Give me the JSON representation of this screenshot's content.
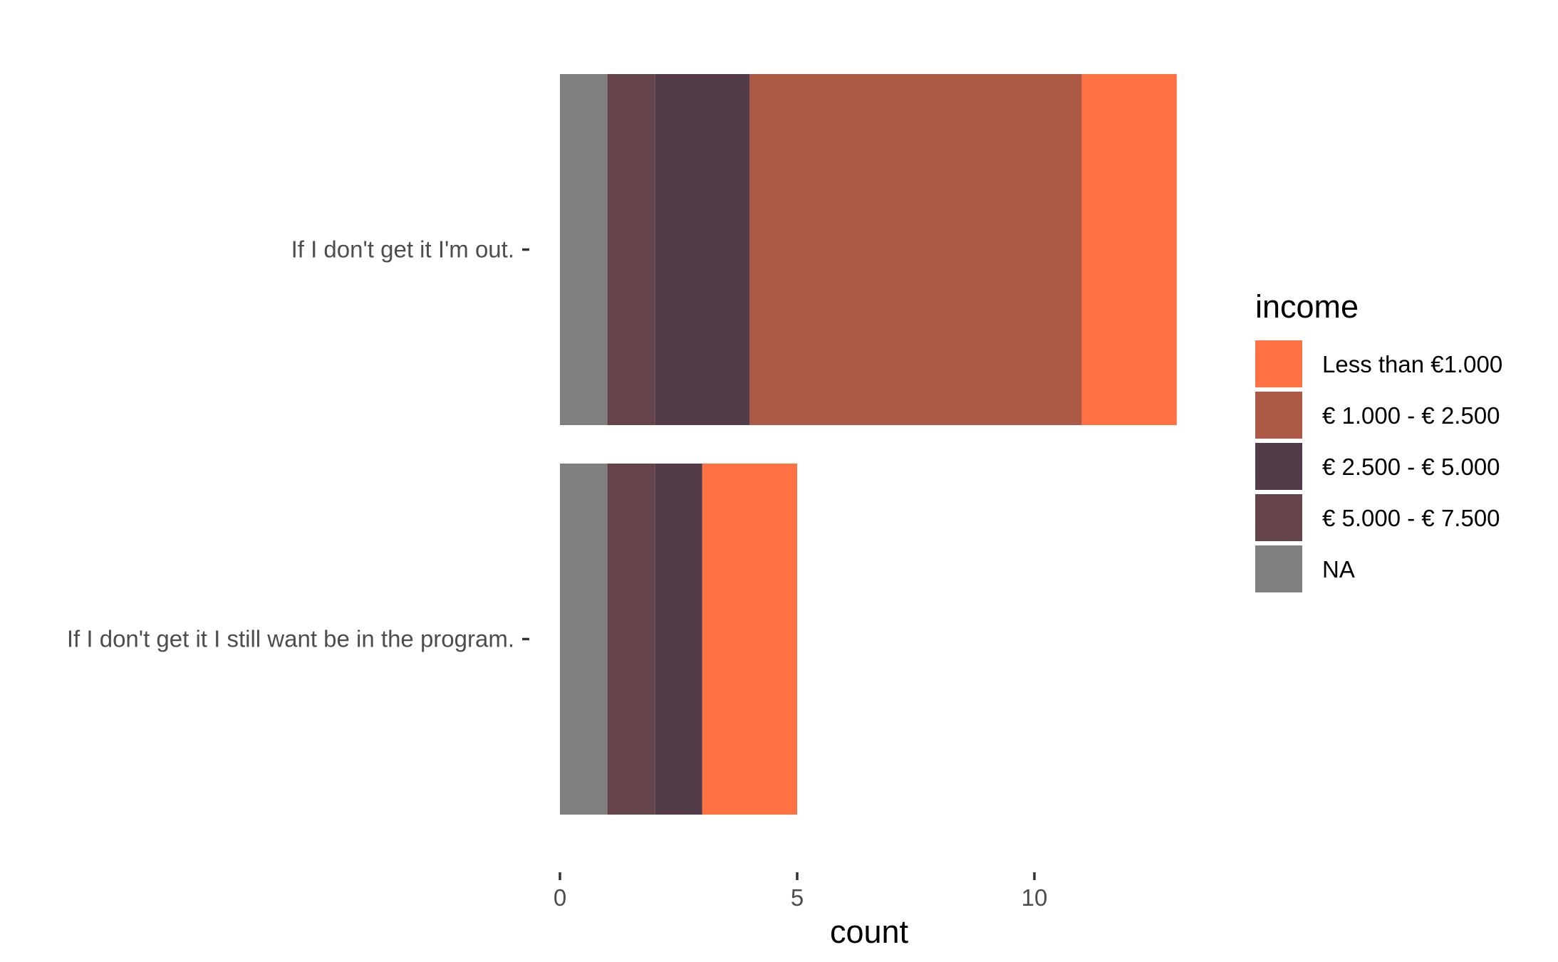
{
  "chart_data": {
    "type": "bar",
    "orientation": "horizontal",
    "stacked": true,
    "categories": [
      "If I don't get it I'm out.",
      "If I don't get it I still want be in the program."
    ],
    "stack_order": [
      "NA",
      "€ 5.000 - € 7.500",
      "€ 2.500 - € 5.000",
      "€ 1.000 - € 2.500",
      "Less than €1.000"
    ],
    "series": [
      {
        "name": "Less than €1.000",
        "color": "#FF7043",
        "values": [
          2,
          2
        ]
      },
      {
        "name": "€ 1.000 - € 2.500",
        "color": "#AC5A45",
        "values": [
          7,
          0
        ]
      },
      {
        "name": "€ 2.500 - € 5.000",
        "color": "#533C49",
        "values": [
          2,
          1
        ]
      },
      {
        "name": "€ 5.000 - € 7.500",
        "color": "#65434A",
        "values": [
          1,
          1
        ]
      },
      {
        "name": "NA",
        "color": "#808080",
        "values": [
          1,
          1
        ]
      }
    ],
    "xlabel": "count",
    "ylabel": "",
    "xlim": [
      0,
      13
    ],
    "xticks": [
      0,
      5,
      10
    ],
    "grid": false,
    "legend": {
      "title": "income",
      "position": "right"
    }
  }
}
